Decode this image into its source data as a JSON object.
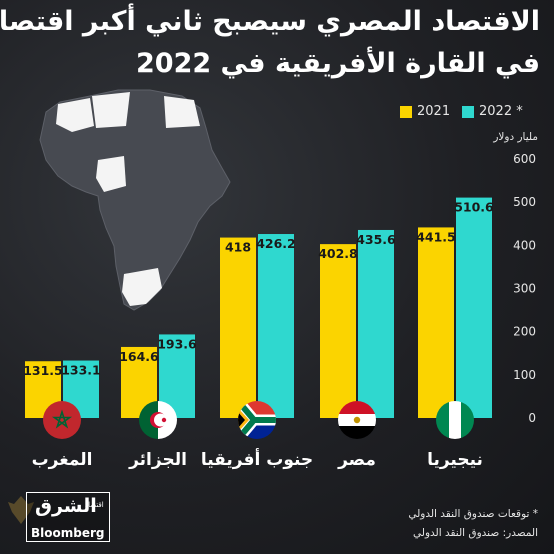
{
  "title_line1": "الاقتصاد المصري سيصبح ثاني أكبر اقتصاد",
  "title_line2": "في القارة الأفريقية في 2022",
  "legend": [
    {
      "label": "2022 *",
      "color": "#2fd8cf"
    },
    {
      "label": "2021",
      "color": "#fbd400"
    }
  ],
  "unit_label": "مليار دولار",
  "footnotes": {
    "forecast": "* توقعات صندوق النقد الدولي",
    "source": "المصدر: صندوق النقد الدولي"
  },
  "logo": {
    "main": "الشرق",
    "sub": "اقتصاد",
    "partner": "Bloomberg"
  },
  "countries": [
    {
      "name": "المغرب",
      "flag": "morocco-flag-icon"
    },
    {
      "name": "الجزائر",
      "flag": "algeria-flag-icon"
    },
    {
      "name": "جنوب أفريقيا",
      "flag": "south-africa-flag-icon"
    },
    {
      "name": "مصر",
      "flag": "egypt-flag-icon"
    },
    {
      "name": "نيجيريا",
      "flag": "nigeria-flag-icon"
    }
  ],
  "chart_data": {
    "type": "bar",
    "categories": [
      "المغرب",
      "الجزائر",
      "جنوب أفريقيا",
      "مصر",
      "نيجيريا"
    ],
    "series": [
      {
        "name": "2021",
        "values": [
          131.5,
          164.6,
          418,
          402.8,
          441.5
        ],
        "labels": [
          "131.5",
          "164.6",
          "418",
          "402.8",
          "441.5"
        ],
        "color": "#fbd400"
      },
      {
        "name": "2022 *",
        "values": [
          133.1,
          193.6,
          426.2,
          435.6,
          510.6
        ],
        "labels": [
          "133.1",
          "193.6",
          "426.2",
          "435.6",
          "510.6"
        ],
        "color": "#2fd8cf"
      }
    ],
    "ylabel": "مليار دولار",
    "ylim": [
      0,
      600
    ],
    "yticks": [
      0,
      100,
      200,
      300,
      400,
      500,
      600
    ],
    "grid": false,
    "legend_position": "top-right"
  }
}
